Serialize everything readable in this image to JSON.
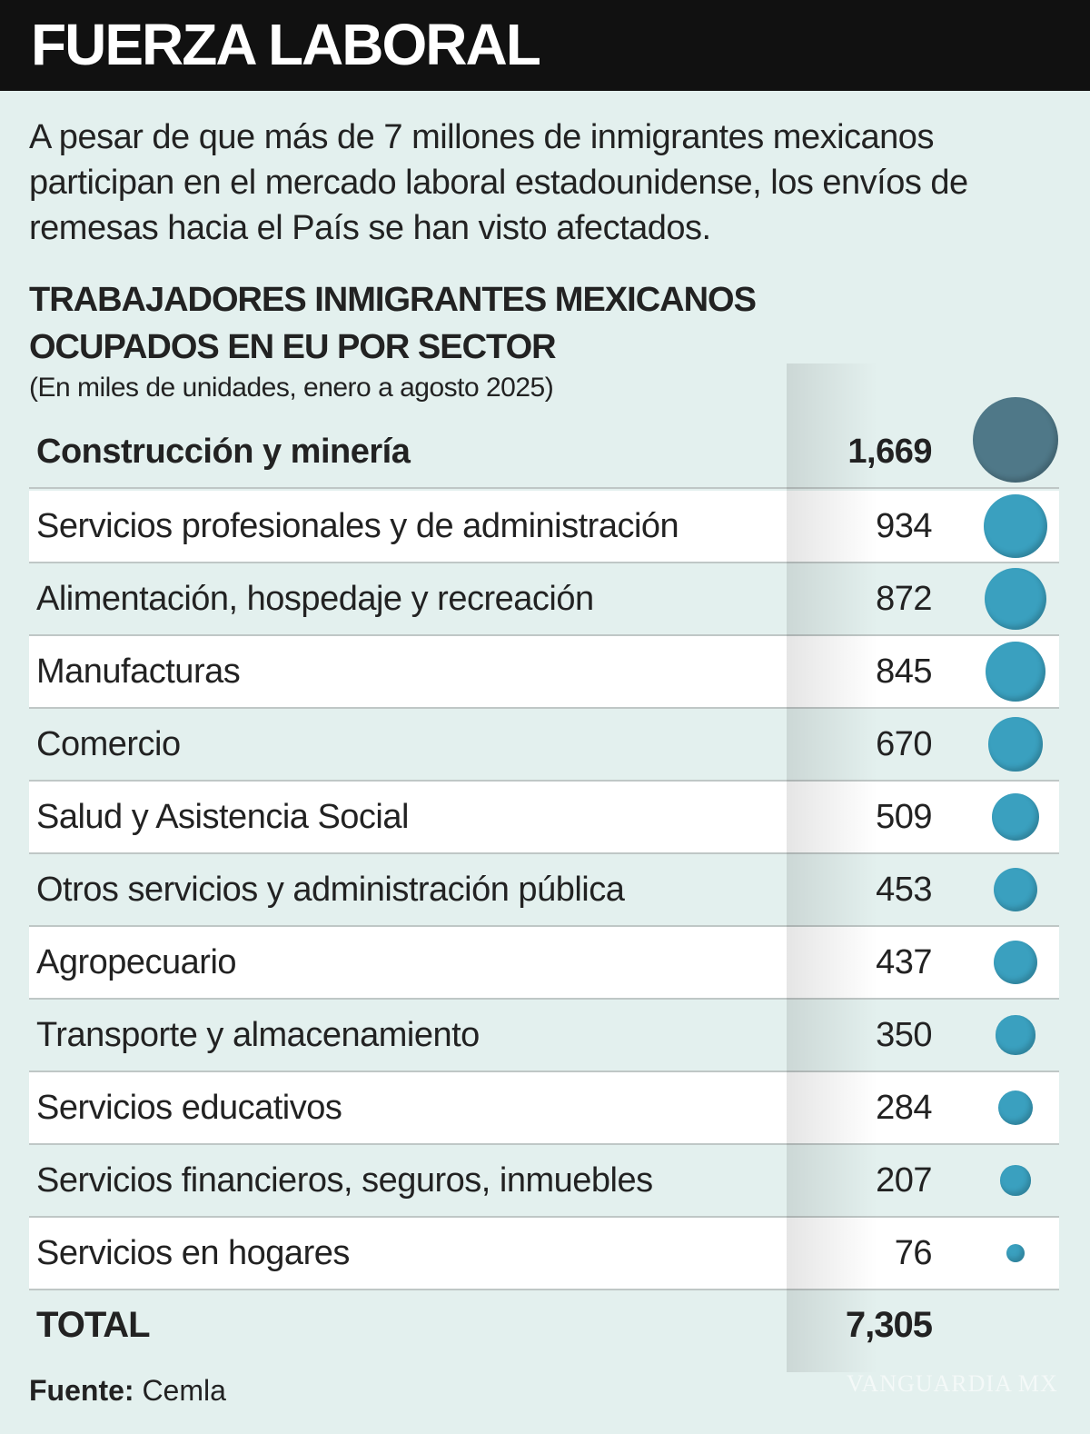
{
  "header": {
    "title": "FUERZA LABORAL"
  },
  "intro": "A pesar de que más de 7 millones de inmigrantes mexicanos participan en el mercado laboral estadounidense, los envíos de remesas hacia el País se han visto afectados.",
  "chart_data": {
    "type": "table",
    "title": "TRABAJADORES INMIGRANTES MEXICANOS OCUPADOS EN EU POR SECTOR",
    "subtitle": "(En miles de unidades, enero a agosto 2025)",
    "encoding": "circle area proportional to value",
    "colors": {
      "highlight": "#4f7888",
      "bubble": "#3aa0bf"
    },
    "rows": [
      {
        "label": "Construcción y minería",
        "value": 1669,
        "display": "1,669",
        "highlight": true
      },
      {
        "label": "Servicios profesionales y de administración",
        "value": 934,
        "display": "934"
      },
      {
        "label": "Alimentación, hospedaje y recreación",
        "value": 872,
        "display": "872"
      },
      {
        "label": "Manufacturas",
        "value": 845,
        "display": "845"
      },
      {
        "label": "Comercio",
        "value": 670,
        "display": "670"
      },
      {
        "label": "Salud y Asistencia Social",
        "value": 509,
        "display": "509"
      },
      {
        "label": "Otros servicios y administración pública",
        "value": 453,
        "display": "453"
      },
      {
        "label": "Agropecuario",
        "value": 437,
        "display": "437"
      },
      {
        "label": "Transporte y almacenamiento",
        "value": 350,
        "display": "350"
      },
      {
        "label": "Servicios educativos",
        "value": 284,
        "display": "284"
      },
      {
        "label": "Servicios financieros, seguros, inmuebles",
        "value": 207,
        "display": "207"
      },
      {
        "label": "Servicios en hogares",
        "value": 76,
        "display": "76"
      }
    ],
    "total": {
      "label": "TOTAL",
      "value": 7305,
      "display": "7,305"
    }
  },
  "source": {
    "label": "Fuente:",
    "value": "Cemla"
  },
  "watermark": "VANGUARDIA MX"
}
